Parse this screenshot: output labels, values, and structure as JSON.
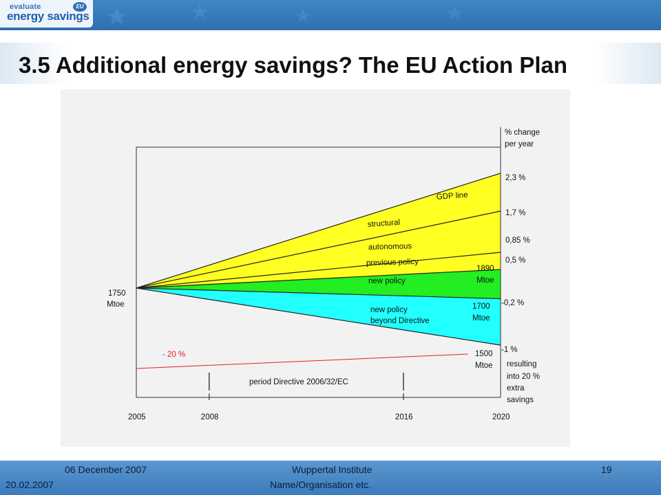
{
  "logo": {
    "line1": "evaluate",
    "line2": "energy savings",
    "badge": "EU"
  },
  "title": "3.5 Additional energy savings? The EU Action Plan",
  "colors": {
    "header": "#2f6fb0",
    "footer": "#4a88c7",
    "yellow_band": "#ffff22",
    "green_band": "#22ee22",
    "cyan_band": "#22ffff",
    "reduction_line": "#dd2222"
  },
  "chart_data": {
    "type": "area",
    "x": [
      2005,
      2020
    ],
    "xticks": [
      "2005",
      "2008",
      "2016",
      "2020"
    ],
    "start_label": [
      "1750",
      "Mtoe"
    ],
    "right_header": [
      "% change",
      "per year"
    ],
    "lines": [
      {
        "pct": "2,3 %",
        "end": 1
      },
      {
        "pct": "1,7 %",
        "end": 0.89
      },
      {
        "pct": "0,85 %",
        "end": 0.77
      },
      {
        "pct": "0,5 %",
        "end": 0.72
      },
      {
        "pct": "-0,2 %",
        "end": 0.635
      },
      {
        "pct": "-1 %",
        "end": 0.5
      }
    ],
    "right_notes": [
      "resulting",
      "into 20 %",
      "extra",
      "savings"
    ],
    "band_labels": [
      "GDP line",
      "structural",
      "autonomous",
      "previous policy",
      "new policy",
      "new policy",
      "beyond Directive"
    ],
    "endpoint_values": [
      {
        "value": "1890",
        "unit": "Mtoe"
      },
      {
        "value": "1700",
        "unit": "Mtoe"
      },
      {
        "value": "1500",
        "unit": "Mtoe"
      }
    ],
    "reduction_label": "- 20 %",
    "period_label": "period Directive 2006/32/EC",
    "period": [
      2008,
      2016
    ]
  },
  "footer": {
    "date": "06 December 2007",
    "date2": "20.02.2007",
    "institute": "Wuppertal Institute",
    "org": "Name/Organisation etc.",
    "page": "19"
  }
}
